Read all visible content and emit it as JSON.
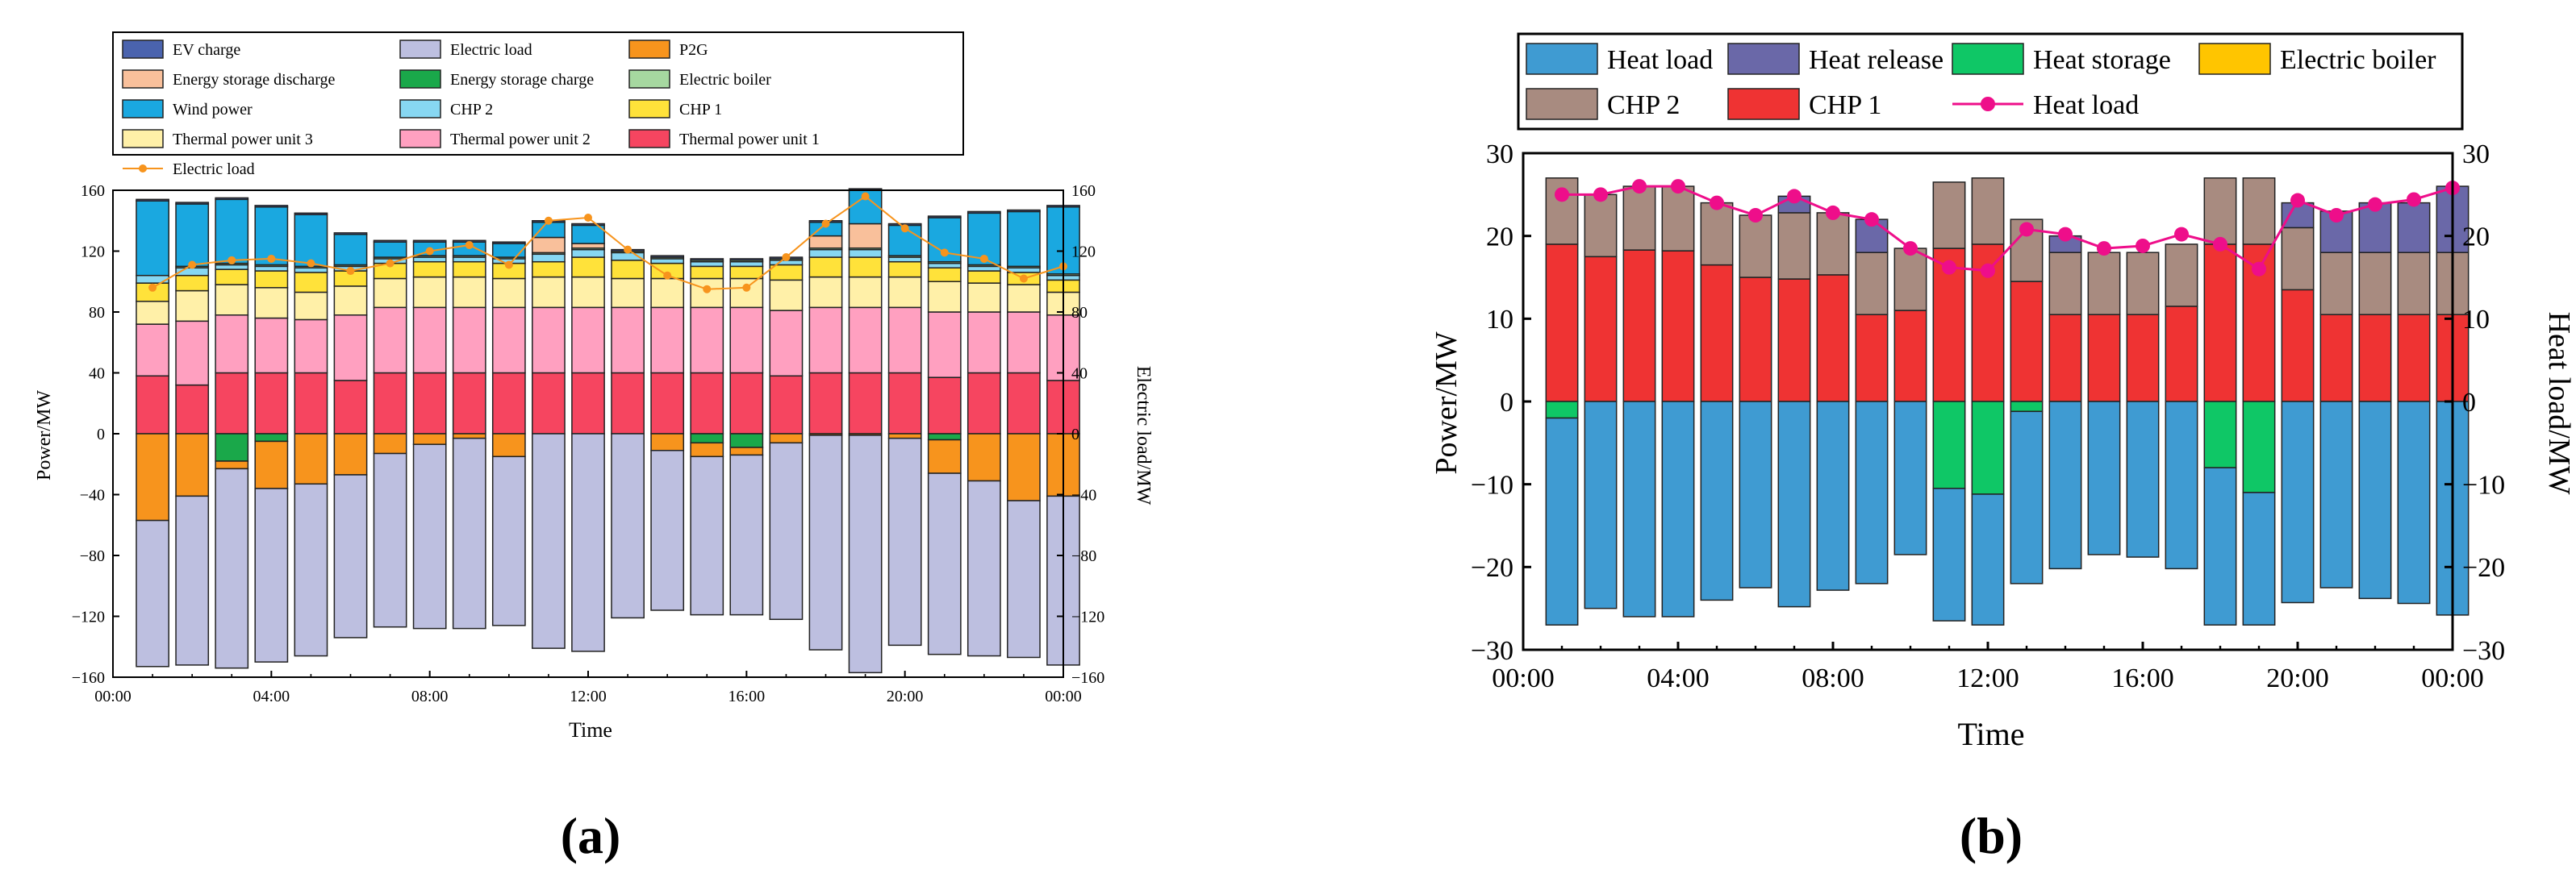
{
  "times": [
    1,
    2,
    3,
    4,
    5,
    6,
    7,
    8,
    9,
    10,
    11,
    12,
    13,
    14,
    15,
    16,
    17,
    18,
    19,
    20,
    21,
    22,
    23,
    24
  ],
  "colors": {
    "ev_charge": "#4a63ae",
    "electric_load_bar": "#bdbfe0",
    "p2g": "#f7941d",
    "energy_storage_discharge": "#f9c09b",
    "energy_storage_charge": "#1aa84a",
    "electric_boiler": "#a6d8a0",
    "wind_power": "#1aa8e0",
    "chp2_a": "#87d7f2",
    "chp1_a": "#ffe23a",
    "thermal3": "#fff0a8",
    "thermal2": "#ffa0c0",
    "thermal1": "#f64560",
    "electric_load_line": "#f7941d",
    "heat_load_bar": "#3f9bd2",
    "heat_release": "#6a68a8",
    "heat_storage": "#0fc766",
    "electric_boiler_b": "#ffc500",
    "chp2_b": "#a88b80",
    "chp1_b": "#ef3333",
    "heat_load_line": "#ee0e8a"
  },
  "chart_data": [
    {
      "id": "a",
      "type": "bar",
      "stacked": true,
      "panel_label": "(a)",
      "xlabel": "Time",
      "ylabel": "Power/MW",
      "y2label": "Electric load/MW",
      "ylim": [
        -160,
        160
      ],
      "y2lim": [
        -160,
        160
      ],
      "yticks": [
        -160,
        -120,
        -80,
        -40,
        0,
        40,
        80,
        120,
        160
      ],
      "yticklabels": [
        "−160",
        "−120",
        "−80",
        "−40",
        "0",
        "40",
        "80",
        "120",
        "160"
      ],
      "y2ticklabels": [
        "−160",
        "−120",
        "−80",
        "−40",
        "0",
        "40",
        "80",
        "120",
        "160"
      ],
      "xticklabels": [
        "00:00",
        "04:00",
        "08:00",
        "12:00",
        "16:00",
        "20:00",
        "00:00"
      ],
      "legend_position": "top",
      "legend": [
        {
          "label": "EV charge",
          "color_key": "ev_charge",
          "kind": "box"
        },
        {
          "label": "Electric load",
          "color_key": "electric_load_bar",
          "kind": "box"
        },
        {
          "label": "P2G",
          "color_key": "p2g",
          "kind": "box"
        },
        {
          "label": "Energy storage discharge",
          "color_key": "energy_storage_discharge",
          "kind": "box"
        },
        {
          "label": "Energy storage charge",
          "color_key": "energy_storage_charge",
          "kind": "box"
        },
        {
          "label": "Electric boiler",
          "color_key": "electric_boiler",
          "kind": "box"
        },
        {
          "label": "Wind power",
          "color_key": "wind_power",
          "kind": "box"
        },
        {
          "label": "CHP 2",
          "color_key": "chp2_a",
          "kind": "box"
        },
        {
          "label": "CHP 1",
          "color_key": "chp1_a",
          "kind": "box"
        },
        {
          "label": "Thermal power unit 3",
          "color_key": "thermal3",
          "kind": "box"
        },
        {
          "label": "Thermal power unit 2",
          "color_key": "thermal2",
          "kind": "box"
        },
        {
          "label": "Thermal power unit 1",
          "color_key": "thermal1",
          "kind": "box"
        },
        {
          "label": "Electric load",
          "color_key": "electric_load_line",
          "kind": "line"
        }
      ],
      "positive_series": [
        {
          "name": "Thermal power unit 1",
          "color_key": "thermal1",
          "values": [
            38,
            32,
            40,
            40,
            40,
            35,
            40,
            40,
            40,
            40,
            40,
            40,
            40,
            40,
            40,
            40,
            38,
            40,
            40,
            40,
            37,
            40,
            40,
            35
          ]
        },
        {
          "name": "Thermal power unit 2",
          "color_key": "thermal2",
          "values": [
            34,
            42,
            38,
            36,
            35,
            43,
            43,
            43,
            43,
            43,
            43,
            43,
            43,
            43,
            43,
            43,
            43,
            43,
            43,
            43,
            43,
            40,
            40,
            43
          ]
        },
        {
          "name": "Thermal power unit 3",
          "color_key": "thermal3",
          "values": [
            15,
            20,
            20,
            20,
            18,
            19,
            19,
            20,
            20,
            19,
            20,
            20,
            19,
            19,
            19,
            19,
            20,
            20,
            20,
            20,
            20,
            19,
            18,
            15
          ]
        },
        {
          "name": "CHP 1",
          "color_key": "chp1_a",
          "values": [
            12,
            10,
            10,
            11,
            13,
            10,
            10,
            10,
            10,
            10,
            10,
            13,
            12,
            10,
            8,
            8,
            10,
            13,
            13,
            10,
            9,
            8,
            8,
            8
          ]
        },
        {
          "name": "CHP 2",
          "color_key": "chp2_a",
          "values": [
            5,
            5,
            3,
            3,
            3,
            3,
            3,
            3,
            3,
            3,
            5,
            5,
            5,
            3,
            3,
            3,
            3,
            5,
            5,
            3,
            3,
            3,
            3,
            3
          ]
        },
        {
          "name": "Electric boiler",
          "color_key": "electric_boiler",
          "values": [
            0,
            1,
            1,
            1,
            1,
            1,
            1,
            1,
            1,
            1,
            1,
            1,
            1,
            1,
            1,
            1,
            1,
            1,
            1,
            1,
            1,
            1,
            1,
            1
          ]
        },
        {
          "name": "Energy storage discharge",
          "color_key": "energy_storage_discharge",
          "values": [
            0,
            0,
            0,
            0,
            0,
            0,
            0,
            0,
            0,
            0,
            10,
            3,
            0,
            0,
            0,
            0,
            0,
            8,
            16,
            0,
            0,
            0,
            0,
            0
          ]
        },
        {
          "name": "Wind power",
          "color_key": "wind_power",
          "values": [
            49,
            41,
            42,
            38,
            34,
            20,
            10,
            9,
            9,
            9,
            10,
            12,
            0,
            0,
            0,
            0,
            0,
            9,
            22,
            20,
            29,
            34,
            36,
            44
          ]
        },
        {
          "name": "EV charge",
          "color_key": "ev_charge",
          "values": [
            1,
            1,
            1,
            1,
            1,
            1,
            1,
            1,
            1,
            1,
            1,
            1,
            1,
            1,
            1,
            1,
            1,
            1,
            1,
            1,
            1,
            1,
            1,
            1
          ]
        }
      ],
      "negative_series": [
        {
          "name": "Energy storage charge",
          "color_key": "energy_storage_charge",
          "values": [
            0,
            0,
            -18,
            -5,
            0,
            0,
            0,
            0,
            0,
            0,
            0,
            0,
            0,
            0,
            -6,
            -9,
            0,
            0,
            0,
            0,
            -4,
            0,
            0,
            0
          ]
        },
        {
          "name": "P2G",
          "color_key": "p2g",
          "values": [
            -57,
            -41,
            -5,
            -31,
            -33,
            -27,
            -13,
            -7,
            -3,
            -15,
            0,
            0,
            0,
            -11,
            -9,
            -5,
            -6,
            -1,
            -1,
            -3,
            -22,
            -31,
            -44,
            -41
          ]
        },
        {
          "name": "Electric load",
          "color_key": "electric_load_bar",
          "values": [
            -96,
            -111,
            -131,
            -114,
            -113,
            -107,
            -114,
            -121,
            -125,
            -111,
            -141,
            -143,
            -121,
            -105,
            -104,
            -105,
            -116,
            -141,
            -156,
            -136,
            -119,
            -115,
            -103,
            -111
          ]
        }
      ],
      "line": {
        "name": "Electric load",
        "color_key": "electric_load_line",
        "values": [
          96,
          111,
          114,
          115,
          112,
          107,
          112,
          120,
          124,
          111,
          140,
          142,
          121,
          104,
          95,
          96,
          116,
          138,
          156,
          135,
          119,
          115,
          102,
          110
        ]
      }
    },
    {
      "id": "b",
      "type": "bar",
      "stacked": true,
      "panel_label": "(b)",
      "xlabel": "Time",
      "ylabel": "Power/MW",
      "y2label": "Heat load/MW",
      "ylim": [
        -30,
        30
      ],
      "y2lim": [
        -30,
        30
      ],
      "yticks": [
        -30,
        -20,
        -10,
        0,
        10,
        20,
        30
      ],
      "yticklabels": [
        "−30",
        "−20",
        "−10",
        "0",
        "10",
        "20",
        "30"
      ],
      "y2ticklabels": [
        "−30",
        "−20",
        "−10",
        "0",
        "10",
        "20",
        "30"
      ],
      "xticklabels": [
        "00:00",
        "04:00",
        "08:00",
        "12:00",
        "16:00",
        "20:00",
        "00:00"
      ],
      "legend_position": "top",
      "legend": [
        {
          "label": "Heat load",
          "color_key": "heat_load_bar",
          "kind": "box"
        },
        {
          "label": "Heat release",
          "color_key": "heat_release",
          "kind": "box"
        },
        {
          "label": "Heat storage",
          "color_key": "heat_storage",
          "kind": "box"
        },
        {
          "label": "Electric boiler",
          "color_key": "electric_boiler_b",
          "kind": "box"
        },
        {
          "label": "CHP 2",
          "color_key": "chp2_b",
          "kind": "box"
        },
        {
          "label": "CHP 1",
          "color_key": "chp1_b",
          "kind": "box"
        },
        {
          "label": "Heat load",
          "color_key": "heat_load_line",
          "kind": "line"
        }
      ],
      "positive_series": [
        {
          "name": "CHP 1",
          "color_key": "chp1_b",
          "values": [
            19,
            17.5,
            18.3,
            18.2,
            16.5,
            15,
            14.8,
            15.3,
            10.5,
            11,
            18.5,
            19,
            14.5,
            10.5,
            10.5,
            10.5,
            11.5,
            19,
            19,
            13.5,
            10.5,
            10.5,
            10.5,
            10.5
          ]
        },
        {
          "name": "CHP 2",
          "color_key": "chp2_b",
          "values": [
            8,
            7.5,
            7.7,
            7.8,
            7.5,
            7.5,
            8,
            7.5,
            7.5,
            7.5,
            8,
            8,
            7.5,
            7.5,
            7.5,
            7.5,
            7.5,
            8,
            8,
            7.5,
            7.5,
            7.5,
            7.5,
            7.5
          ]
        },
        {
          "name": "Heat release",
          "color_key": "heat_release",
          "values": [
            0,
            0,
            0,
            0,
            0,
            0,
            2,
            0,
            4,
            0,
            0,
            0,
            0,
            2,
            0,
            0,
            0,
            0,
            0,
            3,
            5,
            6,
            6,
            8
          ]
        }
      ],
      "negative_series": [
        {
          "name": "Heat storage",
          "color_key": "heat_storage",
          "values": [
            -2,
            0,
            0,
            0,
            0,
            0,
            0,
            0,
            0,
            0,
            -10.5,
            -11.2,
            -1.2,
            0,
            0,
            0,
            0,
            -8,
            -11,
            0,
            0,
            0,
            0,
            0
          ]
        },
        {
          "name": "Heat load",
          "color_key": "heat_load_bar",
          "values": [
            -25,
            -25,
            -26,
            -26,
            -24,
            -22.5,
            -24.8,
            -22.8,
            -22,
            -18.5,
            -16,
            -15.8,
            -20.8,
            -20.2,
            -18.5,
            -18.8,
            -20.2,
            -19,
            -16,
            -24.3,
            -22.5,
            -23.8,
            -24.4,
            -25.8
          ]
        }
      ],
      "line": {
        "name": "Heat load",
        "color_key": "heat_load_line",
        "values": [
          25,
          25,
          26,
          26,
          24,
          22.5,
          24.8,
          22.8,
          22,
          18.5,
          16.2,
          15.8,
          20.8,
          20.2,
          18.5,
          18.8,
          20.2,
          19,
          16,
          24.3,
          22.5,
          23.8,
          24.4,
          25.8
        ]
      }
    }
  ]
}
